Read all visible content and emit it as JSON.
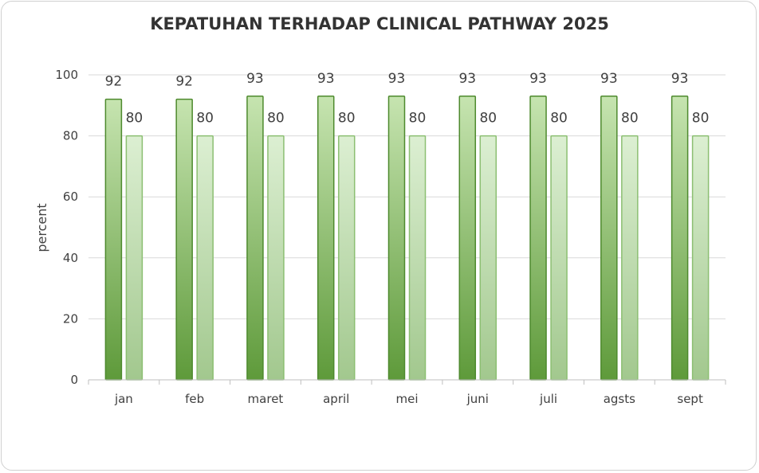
{
  "chart_data": {
    "type": "bar",
    "title": "KEPATUHAN TERHADAP CLINICAL PATHWAY 2025",
    "xlabel": "",
    "ylabel": "percent",
    "ylim": [
      0,
      100
    ],
    "yticks": [
      0,
      20,
      40,
      60,
      80,
      100
    ],
    "grid": true,
    "legend": "none",
    "categories": [
      "jan",
      "feb",
      "maret",
      "april",
      "mei",
      "juni",
      "juli",
      "agsts",
      "sept"
    ],
    "series": [
      {
        "values": [
          92,
          92,
          93,
          93,
          93,
          93,
          93,
          93,
          93
        ],
        "color_top": "#c6e4b0",
        "color_bottom": "#5e9a3a",
        "border": "#4e8a2e"
      },
      {
        "values": [
          80,
          80,
          80,
          80,
          80,
          80,
          80,
          80,
          80
        ],
        "color_top": "#dcefd2",
        "color_bottom": "#a2c88e",
        "border": "#8cbf72"
      }
    ]
  }
}
